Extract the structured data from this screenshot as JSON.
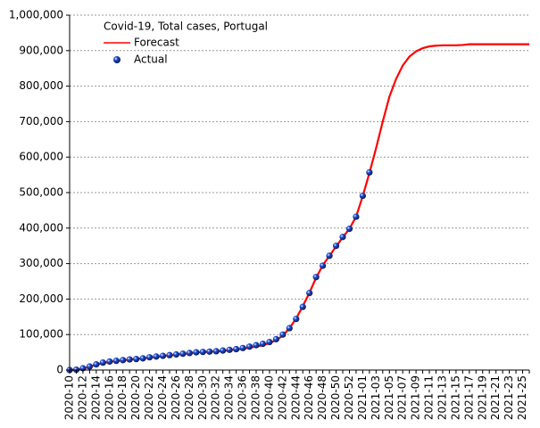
{
  "chart_data": {
    "type": "line",
    "title": "Covid-19, Total cases, Portugal",
    "categories": [
      "2020-10",
      null,
      "2020-12",
      null,
      "2020-14",
      null,
      "2020-16",
      null,
      "2020-18",
      null,
      "2020-20",
      null,
      "2020-22",
      null,
      "2020-24",
      null,
      "2020-26",
      null,
      "2020-28",
      null,
      "2020-30",
      null,
      "2020-32",
      null,
      "2020-34",
      null,
      "2020-36",
      null,
      "2020-38",
      null,
      "2020-40",
      null,
      "2020-42",
      null,
      "2020-44",
      null,
      "2020-46",
      null,
      "2020-48",
      null,
      "2020-50",
      null,
      "2020-52",
      null,
      "2021-01",
      null,
      "2021-03",
      null,
      "2021-05",
      null,
      "2021-07",
      null,
      "2021-09",
      null,
      "2021-11",
      null,
      "2021-13",
      null,
      "2021-15",
      null,
      "2021-17",
      null,
      "2021-19",
      null,
      "2021-21",
      null,
      "2021-23",
      null,
      "2021-25",
      null
    ],
    "series": [
      {
        "name": "Forecast",
        "type": "line",
        "color": "#ff0000",
        "values": [
          0,
          1000,
          4000,
          9000,
          15000,
          20000,
          23000,
          25500,
          27500,
          29500,
          31000,
          33000,
          35000,
          37500,
          39500,
          41500,
          43500,
          45500,
          47500,
          49500,
          50500,
          51500,
          52500,
          54000,
          56000,
          58000,
          60000,
          63000,
          66000,
          70000,
          76000,
          84000,
          97000,
          118000,
          145000,
          180000,
          218000,
          260000,
          295000,
          322000,
          348000,
          374000,
          398000,
          432000,
          490000,
          555000,
          625000,
          700000,
          770000,
          820000,
          858000,
          883000,
          898000,
          907000,
          912000,
          914000,
          915000,
          915000,
          915000,
          916000,
          918000,
          918000,
          918000,
          918000,
          918000,
          918000,
          918000,
          918000,
          918000,
          918000
        ]
      },
      {
        "name": "Actual",
        "type": "scatter",
        "color": "#1f4fd8",
        "values": [
          100,
          1000,
          5000,
          10000,
          16000,
          21000,
          24000,
          26000,
          28000,
          30000,
          31000,
          33000,
          36000,
          38000,
          40000,
          42000,
          44000,
          46000,
          48000,
          50000,
          51000,
          52000,
          53000,
          55000,
          57000,
          59000,
          62000,
          66000,
          70000,
          74000,
          79000,
          87000,
          100000,
          118000,
          144000,
          178000,
          217000,
          262000,
          294000,
          322000,
          350000,
          375000,
          398000,
          432000,
          491000,
          557000,
          null,
          null,
          null,
          null,
          null,
          null,
          null,
          null,
          null,
          null,
          null,
          null,
          null,
          null,
          null,
          null,
          null,
          null,
          null,
          null,
          null,
          null,
          null,
          null
        ]
      }
    ],
    "ylim": [
      0,
      1000000
    ],
    "yticks": [
      0,
      {
        "value": 100000,
        "label": "100,000"
      },
      {
        "value": 200000,
        "label": "200,000"
      },
      {
        "value": 300000,
        "label": "300,000"
      },
      {
        "value": 400000,
        "label": "400,000"
      },
      {
        "value": 500000,
        "label": "500,000"
      },
      {
        "value": 600000,
        "label": "600,000"
      },
      {
        "value": 700000,
        "label": "700,000"
      },
      {
        "value": 800000,
        "label": "800,000"
      },
      {
        "value": 900000,
        "label": "900,000"
      },
      {
        "value": 1000000,
        "label": "1,000,000"
      }
    ],
    "grid": true,
    "legend": "top-left"
  }
}
